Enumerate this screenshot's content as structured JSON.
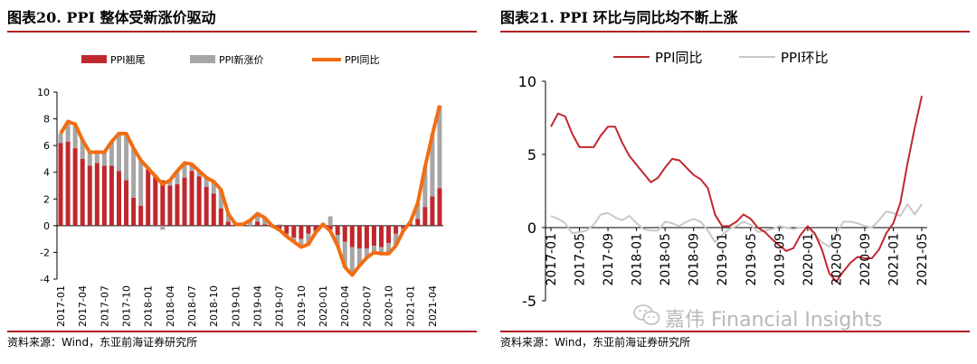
{
  "left_panel": {
    "title": "图表20. PPI 整体受新涨价驱动",
    "source": "资料来源：Wind，东亚前海证券研究所"
  },
  "right_panel": {
    "title": "图表21. PPI 环比与同比均不断上涨",
    "source": "资料来源：Wind，东亚前海证券研究所"
  },
  "watermark": {
    "text": "嘉伟 Financial Insights",
    "icon": "wechat-icon"
  },
  "chart_data": [
    {
      "type": "bar",
      "title": "",
      "stacked": true,
      "legend_position": "top",
      "ylim": [
        -4,
        10
      ],
      "yticks": [
        -4,
        -2,
        0,
        2,
        4,
        6,
        8,
        10
      ],
      "xtick_labels": [
        "2017-01",
        "2017-04",
        "2017-07",
        "2017-10",
        "2018-01",
        "2018-04",
        "2018-07",
        "2018-10",
        "2019-01",
        "2019-04",
        "2019-07",
        "2019-10",
        "2020-01",
        "2020-04",
        "2020-07",
        "2020-10",
        "2021-01",
        "2021-04"
      ],
      "x": [
        "2017-01",
        "2017-02",
        "2017-03",
        "2017-04",
        "2017-05",
        "2017-06",
        "2017-07",
        "2017-08",
        "2017-09",
        "2017-10",
        "2017-11",
        "2017-12",
        "2018-01",
        "2018-02",
        "2018-03",
        "2018-04",
        "2018-05",
        "2018-06",
        "2018-07",
        "2018-08",
        "2018-09",
        "2018-10",
        "2018-11",
        "2018-12",
        "2019-01",
        "2019-02",
        "2019-03",
        "2019-04",
        "2019-05",
        "2019-06",
        "2019-07",
        "2019-08",
        "2019-09",
        "2019-10",
        "2019-11",
        "2019-12",
        "2020-01",
        "2020-02",
        "2020-03",
        "2020-04",
        "2020-05",
        "2020-06",
        "2020-07",
        "2020-08",
        "2020-09",
        "2020-10",
        "2020-11",
        "2020-12",
        "2021-01",
        "2021-02",
        "2021-03",
        "2021-04",
        "2021-05"
      ],
      "series": [
        {
          "name": "PPI翘尾",
          "kind": "bar",
          "color": "#c0282e",
          "values": [
            6.2,
            6.3,
            5.8,
            5.0,
            4.5,
            4.7,
            4.5,
            4.5,
            4.1,
            3.4,
            2.1,
            1.5,
            4.2,
            3.8,
            3.4,
            3.0,
            3.1,
            3.6,
            4.1,
            3.7,
            2.9,
            2.4,
            1.3,
            0.3,
            0.1,
            0.1,
            0.0,
            0.3,
            0.1,
            -0.1,
            -0.4,
            -0.6,
            -0.9,
            -1.0,
            -0.6,
            -0.4,
            -0.1,
            -0.3,
            -0.7,
            -1.2,
            -1.6,
            -1.7,
            -1.7,
            -1.5,
            -1.6,
            -1.3,
            -0.6,
            -0.2,
            0.1,
            0.5,
            1.4,
            2.2,
            2.8
          ]
        },
        {
          "name": "PPI新涨价",
          "kind": "bar",
          "color": "#a6a6a6",
          "values": [
            0.7,
            1.5,
            1.8,
            1.4,
            1.0,
            0.8,
            1.0,
            1.8,
            2.8,
            3.5,
            3.7,
            3.4,
            0.1,
            -0.1,
            -0.3,
            0.4,
            1.0,
            1.1,
            0.5,
            0.4,
            0.7,
            0.9,
            1.4,
            0.6,
            0.0,
            0.0,
            0.4,
            0.6,
            0.5,
            0.1,
            0.1,
            -0.2,
            -0.3,
            -0.6,
            -0.8,
            -0.1,
            0.2,
            0.7,
            -0.8,
            -1.9,
            -2.1,
            -1.3,
            -0.7,
            -0.5,
            -0.5,
            -0.8,
            -0.9,
            -0.2,
            0.2,
            1.2,
            3.0,
            4.6,
            6.2
          ]
        },
        {
          "name": "PPI同比",
          "kind": "line",
          "color": "#f26d12",
          "values": [
            6.9,
            7.8,
            7.6,
            6.4,
            5.5,
            5.5,
            5.5,
            6.3,
            6.9,
            6.9,
            5.8,
            4.9,
            4.3,
            3.7,
            3.1,
            3.4,
            4.1,
            4.7,
            4.6,
            4.1,
            3.6,
            3.3,
            2.7,
            0.9,
            0.1,
            0.1,
            0.4,
            0.9,
            0.6,
            0.0,
            -0.3,
            -0.8,
            -1.2,
            -1.6,
            -1.4,
            -0.5,
            0.1,
            -0.4,
            -1.5,
            -3.1,
            -3.7,
            -3.0,
            -2.4,
            -2.0,
            -2.1,
            -2.1,
            -1.5,
            -0.4,
            0.3,
            1.7,
            4.4,
            6.8,
            9.0
          ]
        }
      ]
    },
    {
      "type": "line",
      "title": "",
      "legend_position": "top",
      "ylim": [
        -5,
        10
      ],
      "yticks": [
        -5,
        0,
        5,
        10
      ],
      "xtick_labels": [
        "2017-01",
        "2017-05",
        "2017-09",
        "2018-01",
        "2018-05",
        "2018-09",
        "2019-01",
        "2019-05",
        "2019-09",
        "2020-01",
        "2020-05",
        "2020-09",
        "2021-01",
        "2021-05"
      ],
      "x": [
        "2017-01",
        "2017-02",
        "2017-03",
        "2017-04",
        "2017-05",
        "2017-06",
        "2017-07",
        "2017-08",
        "2017-09",
        "2017-10",
        "2017-11",
        "2017-12",
        "2018-01",
        "2018-02",
        "2018-03",
        "2018-04",
        "2018-05",
        "2018-06",
        "2018-07",
        "2018-08",
        "2018-09",
        "2018-10",
        "2018-11",
        "2018-12",
        "2019-01",
        "2019-02",
        "2019-03",
        "2019-04",
        "2019-05",
        "2019-06",
        "2019-07",
        "2019-08",
        "2019-09",
        "2019-10",
        "2019-11",
        "2019-12",
        "2020-01",
        "2020-02",
        "2020-03",
        "2020-04",
        "2020-05",
        "2020-06",
        "2020-07",
        "2020-08",
        "2020-09",
        "2020-10",
        "2020-11",
        "2020-12",
        "2021-01",
        "2021-02",
        "2021-03",
        "2021-04",
        "2021-05"
      ],
      "series": [
        {
          "name": "PPI同比",
          "color": "#c0282e",
          "values": [
            6.9,
            7.8,
            7.6,
            6.4,
            5.5,
            5.5,
            5.5,
            6.3,
            6.9,
            6.9,
            5.8,
            4.9,
            4.3,
            3.7,
            3.1,
            3.4,
            4.1,
            4.7,
            4.6,
            4.1,
            3.6,
            3.3,
            2.7,
            0.9,
            0.1,
            0.1,
            0.4,
            0.9,
            0.6,
            0.0,
            -0.3,
            -0.8,
            -1.2,
            -1.6,
            -1.4,
            -0.5,
            0.1,
            -0.4,
            -1.5,
            -3.1,
            -3.7,
            -3.0,
            -2.4,
            -2.0,
            -2.1,
            -2.1,
            -1.5,
            -0.4,
            0.3,
            1.7,
            4.4,
            6.8,
            9.0
          ]
        },
        {
          "name": "PPI环比",
          "color": "#c8c8c8",
          "values": [
            0.8,
            0.6,
            0.3,
            -0.4,
            -0.3,
            -0.2,
            0.2,
            0.9,
            1.0,
            0.7,
            0.5,
            0.8,
            0.3,
            -0.1,
            -0.2,
            -0.2,
            0.4,
            0.3,
            0.1,
            0.4,
            0.6,
            0.4,
            -0.2,
            -1.0,
            -0.5,
            -0.1,
            0.1,
            0.4,
            0.2,
            -0.3,
            -0.2,
            -0.1,
            0.1,
            0.0,
            -0.1,
            0.0,
            0.0,
            -0.5,
            -1.0,
            -1.3,
            -0.4,
            0.4,
            0.4,
            0.3,
            0.1,
            0.0,
            0.5,
            1.1,
            1.0,
            0.8,
            1.6,
            0.9,
            1.6
          ]
        }
      ]
    }
  ]
}
